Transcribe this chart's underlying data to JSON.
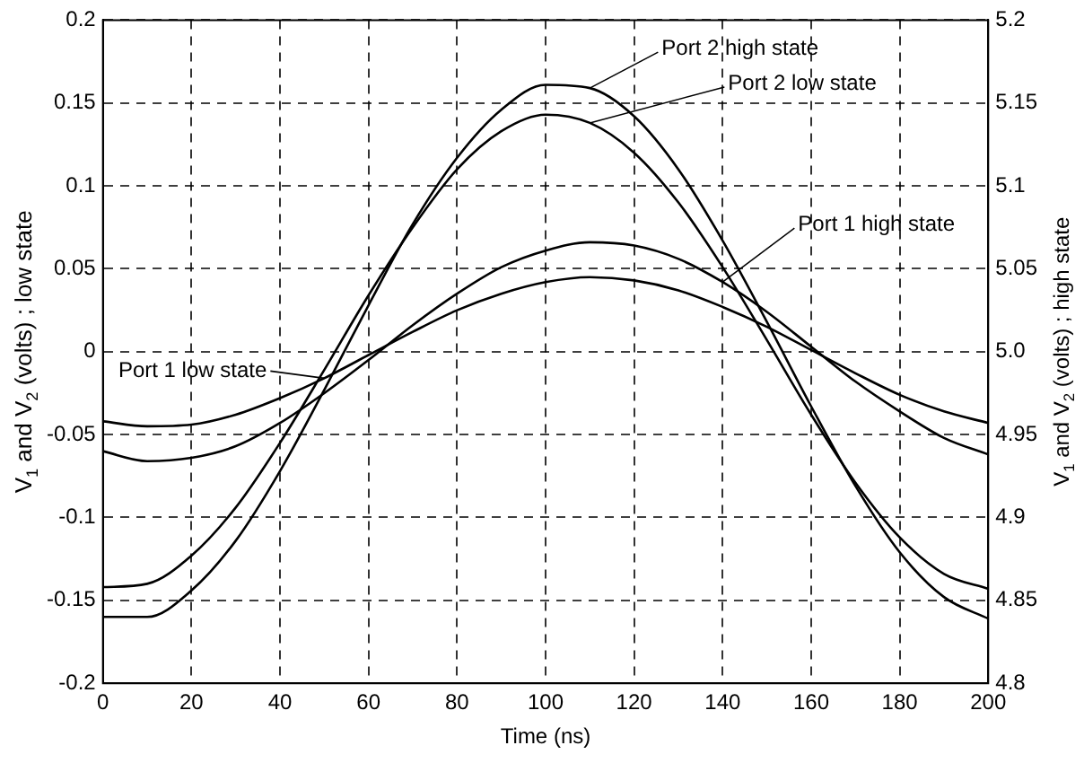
{
  "chart_data": {
    "type": "line",
    "xlabel": "Time (ns)",
    "ylabel": "V$_{1}$ and V$_{2}$ (volts) ; low state",
    "y2label": "V$_{1}$ and V$_{2}$ (volts) ; high state",
    "x": [
      0,
      10,
      20,
      30,
      40,
      50,
      60,
      70,
      80,
      90,
      100,
      110,
      120,
      130,
      140,
      150,
      160,
      170,
      180,
      190,
      200
    ],
    "series": [
      {
        "name": "Port 2 high state",
        "color": "#000000",
        "axis": "y2",
        "values": [
          4.84,
          4.84,
          4.856,
          4.886,
          4.928,
          4.977,
          5.028,
          5.077,
          5.117,
          5.146,
          5.161,
          5.159,
          5.142,
          5.11,
          5.067,
          5.018,
          4.967,
          4.919,
          4.879,
          4.852,
          4.839
        ]
      },
      {
        "name": "Port 2 low state",
        "color": "#000000",
        "values": [
          -0.142,
          -0.14,
          -0.123,
          -0.094,
          -0.055,
          -0.011,
          0.034,
          0.075,
          0.11,
          0.133,
          0.143,
          0.138,
          0.12,
          0.09,
          0.051,
          0.007,
          -0.038,
          -0.079,
          -0.112,
          -0.134,
          -0.143
        ]
      },
      {
        "name": "Port 1 high state",
        "color": "#000000",
        "axis": "y2",
        "values": [
          4.94,
          4.934,
          4.936,
          4.943,
          4.957,
          4.975,
          4.995,
          5.016,
          5.035,
          5.051,
          5.061,
          5.066,
          5.064,
          5.056,
          5.042,
          5.024,
          5.003,
          4.982,
          4.964,
          4.948,
          4.938
        ]
      },
      {
        "name": "Port 1 low state",
        "color": "#000000",
        "values": [
          -0.042,
          -0.045,
          -0.044,
          -0.038,
          -0.028,
          -0.016,
          -0.002,
          0.012,
          0.025,
          0.035,
          0.042,
          0.045,
          0.043,
          0.037,
          0.027,
          0.015,
          0.001,
          -0.013,
          -0.026,
          -0.036,
          -0.043
        ]
      }
    ],
    "xlim": [
      0,
      200
    ],
    "xticks": [
      0,
      20,
      40,
      60,
      80,
      100,
      120,
      140,
      160,
      180,
      200
    ],
    "ylim": [
      -0.2,
      0.2
    ],
    "yticks": [
      -0.2,
      -0.15,
      -0.1,
      -0.05,
      0,
      0.05,
      0.1,
      0.15,
      0.2
    ],
    "y2lim": [
      4.8,
      5.2
    ],
    "y2ticks": [
      4.8,
      4.85,
      4.9,
      4.95,
      {
        "value": 5,
        "label": "5.0"
      },
      5.05,
      5.1,
      5.15,
      5.2
    ],
    "grid": true,
    "marker": "none",
    "line_style": "solid"
  }
}
